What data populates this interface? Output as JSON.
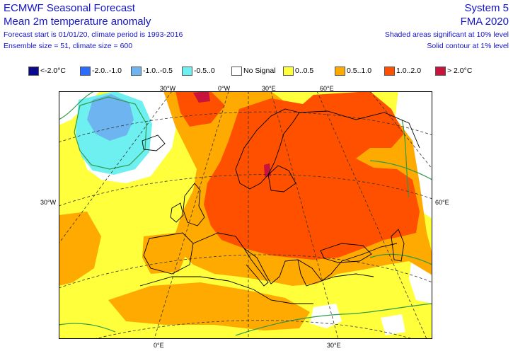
{
  "header": {
    "title": "ECMWF Seasonal Forecast",
    "subtitle": "Mean 2m temperature anomaly",
    "forecast_info": "Forecast start is 01/01/20, climate period is 1993-2016",
    "ensemble_info": "Ensemble size = 51, climate size = 600",
    "system": "System 5",
    "period": "FMA 2020",
    "significance_shaded": "Shaded areas significant at 10% level",
    "significance_contour": "Solid contour at 1% level"
  },
  "legend": [
    {
      "label": "<-2.0°C",
      "color": "#0a0a8c"
    },
    {
      "label": "-2.0..-1.0",
      "color": "#2b6cff"
    },
    {
      "label": "-1.0..-0.5",
      "color": "#6eb4f0"
    },
    {
      "label": "-0.5..0",
      "color": "#6ef0f0"
    },
    {
      "label": "No Signal",
      "color": "#ffffff"
    },
    {
      "label": "0..0.5",
      "color": "#ffff3c"
    },
    {
      "label": "0.5..1.0",
      "color": "#ffaa00"
    },
    {
      "label": "1.0..2.0",
      "color": "#ff5000"
    },
    {
      "label": "> 2.0°C",
      "color": "#c8143c"
    }
  ],
  "axes": {
    "top_labels": [
      "30°W",
      "0°W",
      "30°E",
      "60°E"
    ],
    "left_label": "30°W",
    "right_label": "60°E",
    "bottom_labels": [
      "0°E",
      "30°E"
    ]
  },
  "colors": {
    "no_signal": "#ffffff",
    "warm_weak": "#ffff3c",
    "warm_moderate": "#ffaa00",
    "warm_strong": "#ff5000",
    "warm_extreme": "#c8143c",
    "cool_weak": "#6ef0f0",
    "cool_moderate": "#6eb4f0",
    "cool_strong": "#2b6cff",
    "significance_contour": "#2e9a4a"
  }
}
